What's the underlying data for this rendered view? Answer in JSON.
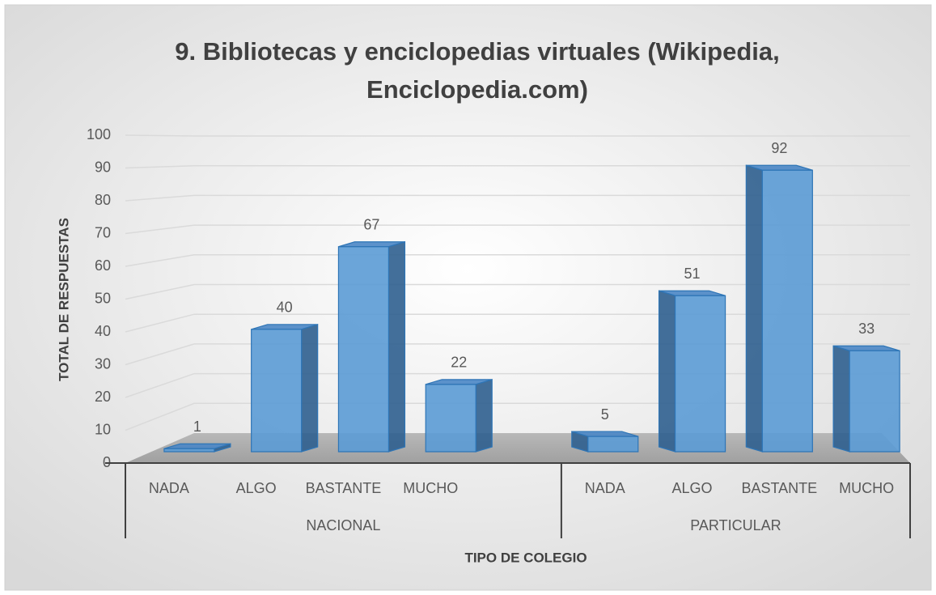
{
  "chart_data": {
    "type": "bar",
    "title": "9. Bibliotecas y enciclopedias virtuales (Wikipedia, Enciclopedia.com)",
    "y_label": "TOTAL DE RESPUESTAS",
    "x_label": "TIPO DE COLEGIO",
    "color": "#5b9bd5",
    "ylim": [
      0,
      100
    ],
    "yticks": [
      0,
      10,
      20,
      30,
      40,
      50,
      60,
      70,
      80,
      90,
      100
    ],
    "grid": true,
    "groups": [
      {
        "name": "NACIONAL",
        "categories": [
          "NADA",
          "ALGO",
          "BASTANTE",
          "MUCHO",
          null
        ],
        "values": [
          1,
          40,
          67,
          22,
          null
        ]
      },
      {
        "name": "PARTICULAR",
        "categories": [
          "NADA",
          "ALGO",
          "BASTANTE",
          "MUCHO"
        ],
        "values": [
          5,
          51,
          92,
          33
        ]
      }
    ]
  }
}
